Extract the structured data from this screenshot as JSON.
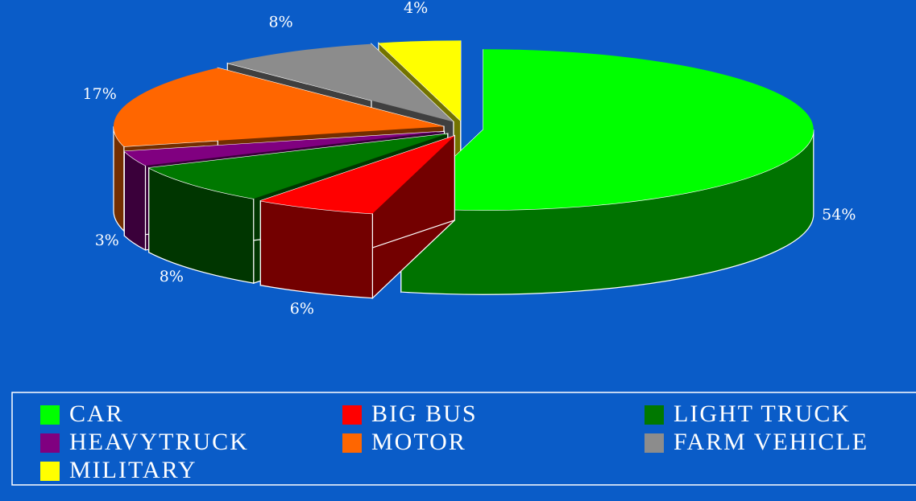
{
  "chart_data": {
    "type": "pie",
    "categories": [
      "CAR",
      "BIG BUS",
      "LIGHT TRUCK",
      "HEAVYTRUCK",
      "MOTOR",
      "FARM VEHICLE",
      "MILITARY"
    ],
    "values": [
      54,
      6,
      8,
      3,
      17,
      8,
      4
    ],
    "value_labels": [
      "54%",
      "6%",
      "8%",
      "3%",
      "17%",
      "8%",
      "4%"
    ],
    "colors": [
      "#00ff00",
      "#ff0000",
      "#007800",
      "#800080",
      "#ff6600",
      "#8c8c8c",
      "#ffff00"
    ],
    "legend": "bottom"
  }
}
